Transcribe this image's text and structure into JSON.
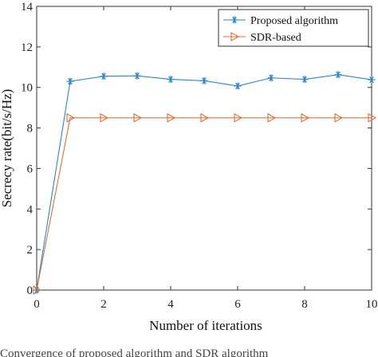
{
  "chart_data": {
    "type": "line",
    "xlabel": "Number of iterations",
    "ylabel": "Secrecy rate(bit/s/Hz)",
    "xlim": [
      0,
      10
    ],
    "ylim": [
      0,
      14
    ],
    "xticks": [
      "0",
      "2",
      "4",
      "6",
      "8",
      "10"
    ],
    "yticks": [
      "0",
      "2",
      "4",
      "6",
      "8",
      "10",
      "12",
      "14"
    ],
    "grid": false,
    "legend_position": "top-right",
    "x": [
      0,
      1,
      2,
      3,
      4,
      5,
      6,
      7,
      8,
      9,
      10
    ],
    "series": [
      {
        "name": "Proposed algorithm",
        "color": "#2e86c1",
        "marker": "asterisk",
        "values": [
          0,
          10.3,
          10.55,
          10.57,
          10.4,
          10.33,
          10.07,
          10.47,
          10.4,
          10.63,
          10.38
        ]
      },
      {
        "name": "SDR-based",
        "color": "#e0703a",
        "marker": "triangle-right",
        "values": [
          0,
          8.5,
          8.5,
          8.5,
          8.5,
          8.5,
          8.5,
          8.5,
          8.5,
          8.5,
          8.5
        ]
      }
    ]
  },
  "caption": "Convergence of proposed algorithm and SDR algorithm"
}
